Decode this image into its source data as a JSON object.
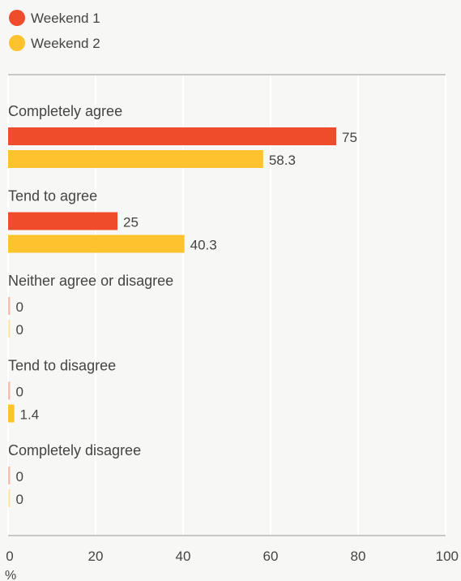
{
  "chart_data": {
    "type": "bar",
    "orientation": "horizontal",
    "categories": [
      "Completely agree",
      "Tend to agree",
      "Neither agree or disagree",
      "Tend to disagree",
      "Completely disagree"
    ],
    "series": [
      {
        "name": "Weekend 1",
        "color": "#ee4c2a",
        "values": [
          75,
          25,
          0,
          0,
          0
        ],
        "labels": [
          "75",
          "25",
          "0",
          "0",
          "0"
        ]
      },
      {
        "name": "Weekend 2",
        "color": "#fec22f",
        "values": [
          58.3,
          40.3,
          0,
          1.4,
          0
        ],
        "labels": [
          "58.3",
          "40.3",
          "0",
          "1.4",
          "0"
        ]
      }
    ],
    "xlim": [
      0,
      100
    ],
    "x_ticks": [
      "0",
      "20",
      "40",
      "60",
      "80",
      "100"
    ],
    "x_unit": "%",
    "grid": true,
    "legend_position": "top-left"
  }
}
